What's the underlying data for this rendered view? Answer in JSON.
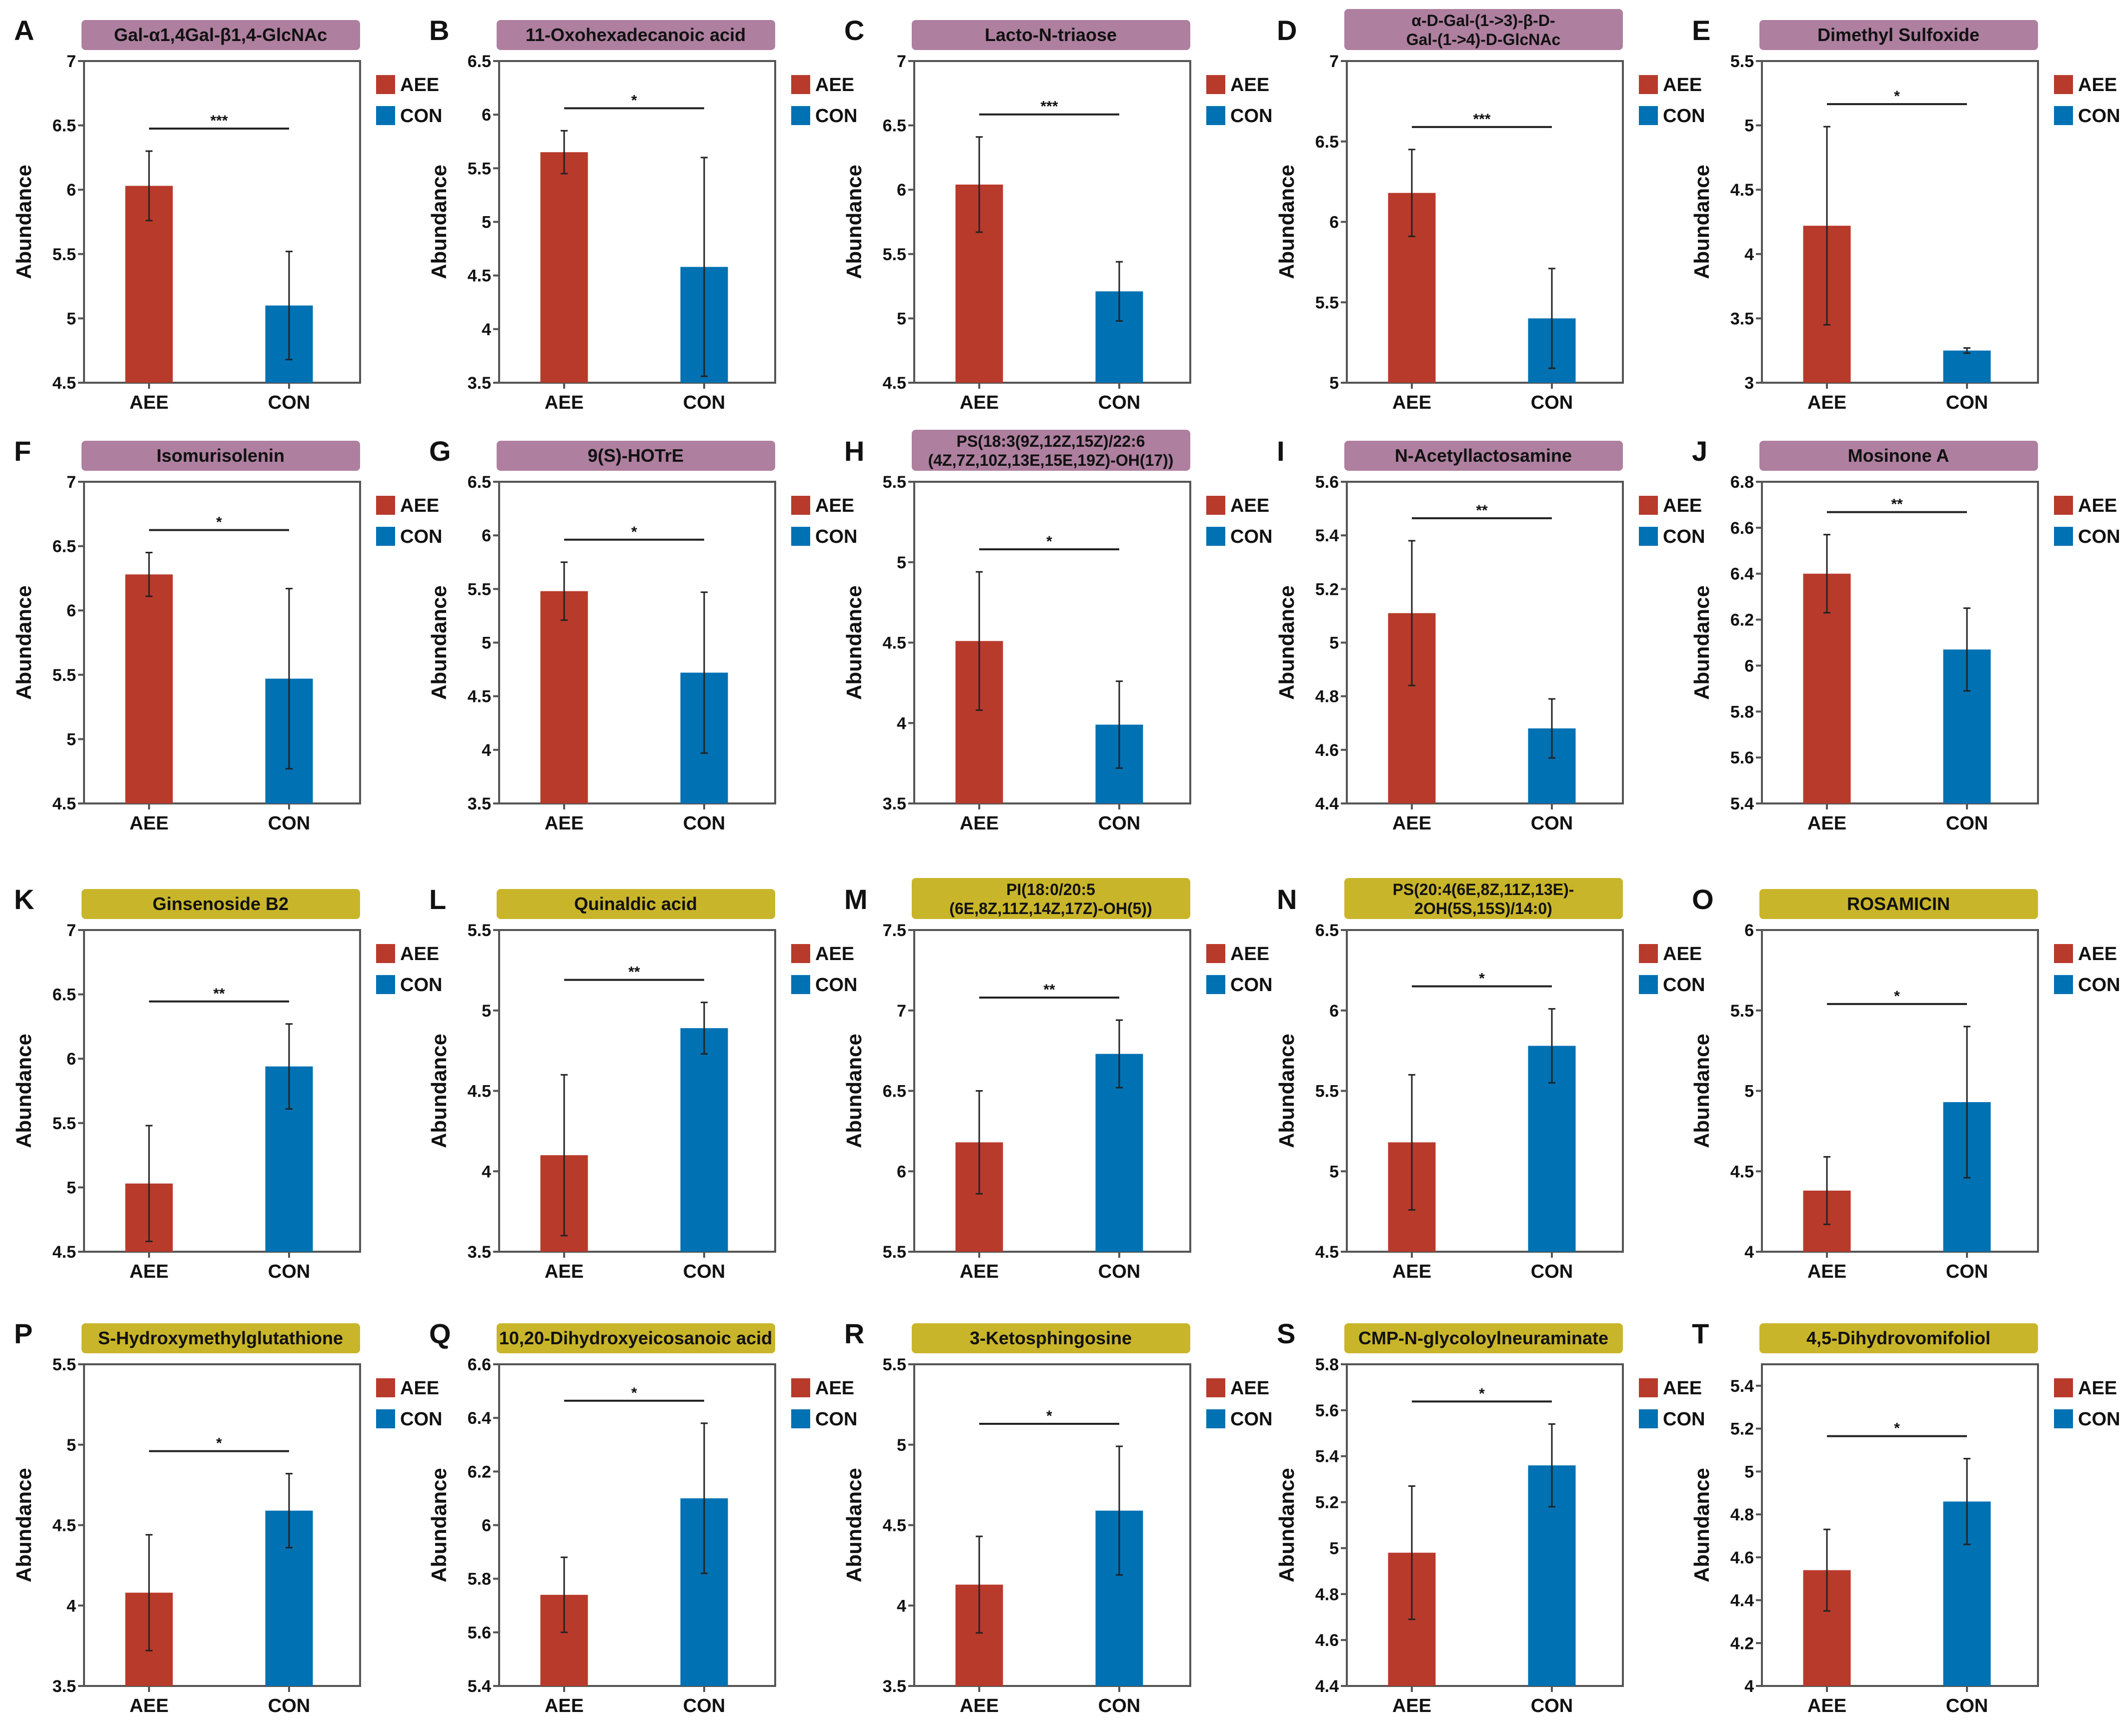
{
  "legend": {
    "aee": "AEE",
    "con": "CON"
  },
  "ylabel": "Abundance",
  "colors": {
    "AEE": "#B83A2B",
    "CON": "#0071B3",
    "title_purple": "#AE7F9F",
    "title_yellow": "#C9B52A"
  },
  "chart_data": [
    {
      "panel": "A",
      "type": "bar",
      "title_lines": [
        "Gal-α1,4Gal-β1,4-GlcNAc"
      ],
      "title_style": "purple",
      "categories": [
        "AEE",
        "CON"
      ],
      "values": [
        6.03,
        5.1
      ],
      "errors": [
        0.27,
        0.42
      ],
      "ylim": [
        4.5,
        7
      ],
      "yticks": [
        "4.5",
        "5",
        "5.5",
        "6",
        "6.5",
        "7"
      ],
      "significance": "***",
      "ylabel": "Abundance"
    },
    {
      "panel": "B",
      "type": "bar",
      "title_lines": [
        "11-Oxohexadecanoic acid"
      ],
      "title_style": "purple",
      "categories": [
        "AEE",
        "CON"
      ],
      "values": [
        5.65,
        4.58
      ],
      "errors": [
        0.2,
        1.02
      ],
      "ylim": [
        3.5,
        6.5
      ],
      "yticks": [
        "3.5",
        "4",
        "4.5",
        "5",
        "5.5",
        "6",
        "6.5"
      ],
      "significance": "*",
      "ylabel": "Abundance"
    },
    {
      "panel": "C",
      "type": "bar",
      "title_lines": [
        "Lacto-N-triaose"
      ],
      "title_style": "purple",
      "categories": [
        "AEE",
        "CON"
      ],
      "values": [
        6.04,
        5.21
      ],
      "errors": [
        0.37,
        0.23
      ],
      "ylim": [
        4.5,
        7
      ],
      "yticks": [
        "4.5",
        "5",
        "5.5",
        "6",
        "6.5",
        "7"
      ],
      "significance": "***",
      "ylabel": "Abundance"
    },
    {
      "panel": "D",
      "type": "bar",
      "title_lines": [
        "α-D-Gal-(1->3)-β-D-",
        "Gal-(1->4)-D-GlcNAc"
      ],
      "title_style": "purple",
      "categories": [
        "AEE",
        "CON"
      ],
      "values": [
        6.18,
        5.4
      ],
      "errors": [
        0.27,
        0.31
      ],
      "ylim": [
        5,
        7
      ],
      "yticks": [
        "5",
        "5.5",
        "6",
        "6.5",
        "7"
      ],
      "significance": "***",
      "ylabel": "Abundance"
    },
    {
      "panel": "E",
      "type": "bar",
      "title_lines": [
        "Dimethyl Sulfoxide"
      ],
      "title_style": "purple",
      "categories": [
        "AEE",
        "CON"
      ],
      "values": [
        4.22,
        3.25
      ],
      "errors": [
        0.77,
        0.02
      ],
      "ylim": [
        3,
        5.5
      ],
      "yticks": [
        "3",
        "3.5",
        "4",
        "4.5",
        "5",
        "5.5"
      ],
      "significance": "*",
      "ylabel": "Abundance"
    },
    {
      "panel": "F",
      "type": "bar",
      "title_lines": [
        "Isomurisolenin"
      ],
      "title_style": "purple",
      "categories": [
        "AEE",
        "CON"
      ],
      "values": [
        6.28,
        5.47
      ],
      "errors": [
        0.17,
        0.7
      ],
      "ylim": [
        4.5,
        7
      ],
      "yticks": [
        "4.5",
        "5",
        "5.5",
        "6",
        "6.5",
        "7"
      ],
      "significance": "*",
      "ylabel": "Abundance"
    },
    {
      "panel": "G",
      "type": "bar",
      "title_lines": [
        "9(S)-HOTrE"
      ],
      "title_style": "purple",
      "categories": [
        "AEE",
        "CON"
      ],
      "values": [
        5.48,
        4.72
      ],
      "errors": [
        0.27,
        0.75
      ],
      "ylim": [
        3.5,
        6.5
      ],
      "yticks": [
        "3.5",
        "4",
        "4.5",
        "5",
        "5.5",
        "6",
        "6.5"
      ],
      "significance": "*",
      "ylabel": "Abundance"
    },
    {
      "panel": "H",
      "type": "bar",
      "title_lines": [
        "PS(18:3(9Z,12Z,15Z)/22:6",
        "(4Z,7Z,10Z,13E,15E,19Z)-OH(17))"
      ],
      "title_style": "purple",
      "categories": [
        "AEE",
        "CON"
      ],
      "values": [
        4.51,
        3.99
      ],
      "errors": [
        0.43,
        0.27
      ],
      "ylim": [
        3.5,
        5.5
      ],
      "yticks": [
        "3.5",
        "4",
        "4.5",
        "5",
        "5.5"
      ],
      "significance": "*",
      "ylabel": "Abundance"
    },
    {
      "panel": "I",
      "type": "bar",
      "title_lines": [
        "N-Acetyllactosamine"
      ],
      "title_style": "purple",
      "categories": [
        "AEE",
        "CON"
      ],
      "values": [
        5.11,
        4.68
      ],
      "errors": [
        0.27,
        0.11
      ],
      "ylim": [
        4.4,
        5.6
      ],
      "yticks": [
        "4.4",
        "4.6",
        "4.8",
        "5",
        "5.2",
        "5.4",
        "5.6"
      ],
      "significance": "**",
      "ylabel": "Abundance"
    },
    {
      "panel": "J",
      "type": "bar",
      "title_lines": [
        "Mosinone A"
      ],
      "title_style": "purple",
      "categories": [
        "AEE",
        "CON"
      ],
      "values": [
        6.4,
        6.07
      ],
      "errors": [
        0.17,
        0.18
      ],
      "ylim": [
        5.4,
        6.8
      ],
      "yticks": [
        "5.4",
        "5.6",
        "5.8",
        "6",
        "6.2",
        "6.4",
        "6.6",
        "6.8"
      ],
      "significance": "**",
      "ylabel": "Abundance"
    },
    {
      "panel": "K",
      "type": "bar",
      "title_lines": [
        "Ginsenoside B2"
      ],
      "title_style": "yellow",
      "categories": [
        "AEE",
        "CON"
      ],
      "values": [
        5.03,
        5.94
      ],
      "errors": [
        0.45,
        0.33
      ],
      "ylim": [
        4.5,
        7
      ],
      "yticks": [
        "4.5",
        "5",
        "5.5",
        "6",
        "6.5",
        "7"
      ],
      "significance": "**",
      "ylabel": "Abundance"
    },
    {
      "panel": "L",
      "type": "bar",
      "title_lines": [
        "Quinaldic acid"
      ],
      "title_style": "yellow",
      "categories": [
        "AEE",
        "CON"
      ],
      "values": [
        4.1,
        4.89
      ],
      "errors": [
        0.5,
        0.16
      ],
      "ylim": [
        3.5,
        5.5
      ],
      "yticks": [
        "3.5",
        "4",
        "4.5",
        "5",
        "5.5"
      ],
      "significance": "**",
      "ylabel": "Abundance"
    },
    {
      "panel": "M",
      "type": "bar",
      "title_lines": [
        "PI(18:0/20:5",
        "(6E,8Z,11Z,14Z,17Z)-OH(5))"
      ],
      "title_style": "yellow",
      "categories": [
        "AEE",
        "CON"
      ],
      "values": [
        6.18,
        6.73
      ],
      "errors": [
        0.32,
        0.21
      ],
      "ylim": [
        5.5,
        7.5
      ],
      "yticks": [
        "5.5",
        "6",
        "6.5",
        "7",
        "7.5"
      ],
      "significance": "**",
      "ylabel": "Abundance"
    },
    {
      "panel": "N",
      "type": "bar",
      "title_lines": [
        "PS(20:4(6E,8Z,11Z,13E)-",
        "2OH(5S,15S)/14:0)"
      ],
      "title_style": "yellow",
      "categories": [
        "AEE",
        "CON"
      ],
      "values": [
        5.18,
        5.78
      ],
      "errors": [
        0.42,
        0.23
      ],
      "ylim": [
        4.5,
        6.5
      ],
      "yticks": [
        "4.5",
        "5",
        "5.5",
        "6",
        "6.5"
      ],
      "significance": "*",
      "ylabel": "Abundance"
    },
    {
      "panel": "O",
      "type": "bar",
      "title_lines": [
        "ROSAMICIN"
      ],
      "title_style": "yellow",
      "categories": [
        "AEE",
        "CON"
      ],
      "values": [
        4.38,
        4.93
      ],
      "errors": [
        0.21,
        0.47
      ],
      "ylim": [
        4,
        6
      ],
      "yticks": [
        "4",
        "4.5",
        "5",
        "5.5",
        "6"
      ],
      "significance": "*",
      "ylabel": "Abundance"
    },
    {
      "panel": "P",
      "type": "bar",
      "title_lines": [
        "S-Hydroxymethylglutathione"
      ],
      "title_style": "yellow",
      "categories": [
        "AEE",
        "CON"
      ],
      "values": [
        4.08,
        4.59
      ],
      "errors": [
        0.36,
        0.23
      ],
      "ylim": [
        3.5,
        5.5
      ],
      "yticks": [
        "3.5",
        "4",
        "4.5",
        "5",
        "5.5"
      ],
      "significance": "*",
      "ylabel": "Abundance"
    },
    {
      "panel": "Q",
      "type": "bar",
      "title_lines": [
        "10,20-Dihydroxyeicosanoic acid"
      ],
      "title_style": "yellow",
      "categories": [
        "AEE",
        "CON"
      ],
      "values": [
        5.74,
        6.1
      ],
      "errors": [
        0.14,
        0.28
      ],
      "ylim": [
        5.4,
        6.6
      ],
      "yticks": [
        "5.4",
        "5.6",
        "5.8",
        "6",
        "6.2",
        "6.4",
        "6.6"
      ],
      "significance": "*",
      "ylabel": "Abundance"
    },
    {
      "panel": "R",
      "type": "bar",
      "title_lines": [
        "3-Ketosphingosine"
      ],
      "title_style": "yellow",
      "categories": [
        "AEE",
        "CON"
      ],
      "values": [
        4.13,
        4.59
      ],
      "errors": [
        0.3,
        0.4
      ],
      "ylim": [
        3.5,
        5.5
      ],
      "yticks": [
        "3.5",
        "4",
        "4.5",
        "5",
        "5.5"
      ],
      "significance": "*",
      "ylabel": "Abundance"
    },
    {
      "panel": "S",
      "type": "bar",
      "title_lines": [
        "CMP-N-glycoloylneuraminate"
      ],
      "title_style": "yellow",
      "categories": [
        "AEE",
        "CON"
      ],
      "values": [
        4.98,
        5.36
      ],
      "errors": [
        0.29,
        0.18
      ],
      "ylim": [
        4.4,
        5.8
      ],
      "yticks": [
        "4.4",
        "4.6",
        "4.8",
        "5",
        "5.2",
        "5.4",
        "5.6",
        "5.8"
      ],
      "significance": "*",
      "ylabel": "Abundance"
    },
    {
      "panel": "T",
      "type": "bar",
      "title_lines": [
        "4,5-Dihydrovomifoliol"
      ],
      "title_style": "yellow",
      "categories": [
        "AEE",
        "CON"
      ],
      "values": [
        4.54,
        4.86
      ],
      "errors": [
        0.19,
        0.2
      ],
      "ylim": [
        4,
        5.5
      ],
      "yticks": [
        "4",
        "4.2",
        "4.4",
        "4.6",
        "4.8",
        "5",
        "5.2",
        "5.4"
      ],
      "significance": "*",
      "ylabel": "Abundance"
    }
  ]
}
